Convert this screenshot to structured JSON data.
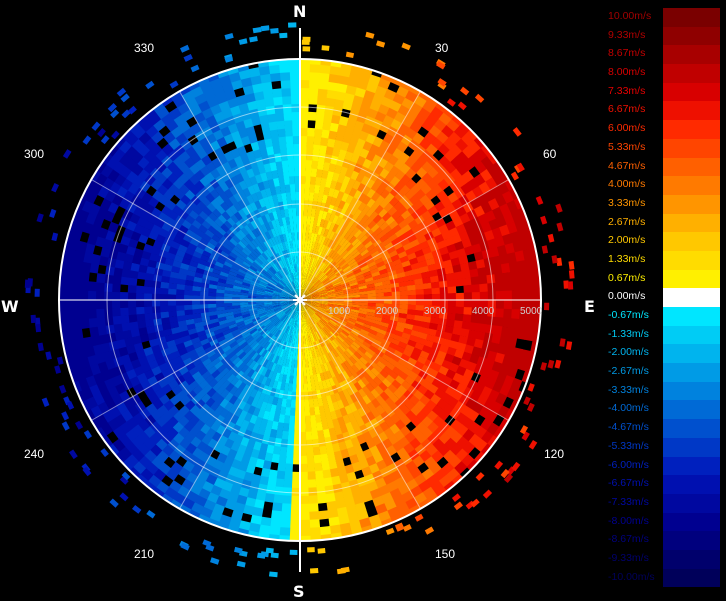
{
  "compass": {
    "n": "N",
    "e": "E",
    "s": "S",
    "w": "W"
  },
  "angles": [
    "30",
    "60",
    "120",
    "150",
    "210",
    "240",
    "300",
    "330"
  ],
  "range_labels": [
    "1000",
    "2000",
    "3000",
    "4000",
    "5000"
  ],
  "legend": [
    {
      "label": "10.00m/s",
      "color": "#7a0000",
      "text_color": "#a00000"
    },
    {
      "label": "9.33m/s",
      "color": "#8f0000",
      "text_color": "#b00000"
    },
    {
      "label": "8.67m/s",
      "color": "#a80000",
      "text_color": "#c40000"
    },
    {
      "label": "8.00m/s",
      "color": "#c00000",
      "text_color": "#d80000"
    },
    {
      "label": "7.33m/s",
      "color": "#d80000",
      "text_color": "#e80000"
    },
    {
      "label": "6.67m/s",
      "color": "#ee1000",
      "text_color": "#f01000"
    },
    {
      "label": "6.00m/s",
      "color": "#ff2a00",
      "text_color": "#ff2a00"
    },
    {
      "label": "5.33m/s",
      "color": "#ff4500",
      "text_color": "#ff4500"
    },
    {
      "label": "4.67m/s",
      "color": "#ff6000",
      "text_color": "#ff6000"
    },
    {
      "label": "4.00m/s",
      "color": "#ff7a00",
      "text_color": "#ff7a00"
    },
    {
      "label": "3.33m/s",
      "color": "#ff9500",
      "text_color": "#ff9500"
    },
    {
      "label": "2.67m/s",
      "color": "#ffb000",
      "text_color": "#ffb000"
    },
    {
      "label": "2.00m/s",
      "color": "#ffc800",
      "text_color": "#ffc800"
    },
    {
      "label": "1.33m/s",
      "color": "#ffdc00",
      "text_color": "#ffdc00"
    },
    {
      "label": "0.67m/s",
      "color": "#fff000",
      "text_color": "#fff000"
    },
    {
      "label": "0.00m/s",
      "color": "#ffffff",
      "text_color": "#ffffff"
    },
    {
      "label": "-0.67m/s",
      "color": "#00e6ff",
      "text_color": "#00e6ff"
    },
    {
      "label": "-1.33m/s",
      "color": "#00ccf5",
      "text_color": "#00ccf5"
    },
    {
      "label": "-2.00m/s",
      "color": "#00b4ee",
      "text_color": "#00b4ee"
    },
    {
      "label": "-2.67m/s",
      "color": "#009be6",
      "text_color": "#009be6"
    },
    {
      "label": "-3.33m/s",
      "color": "#0082de",
      "text_color": "#0082de"
    },
    {
      "label": "-4.00m/s",
      "color": "#006ad6",
      "text_color": "#006ad6"
    },
    {
      "label": "-4.67m/s",
      "color": "#0050ce",
      "text_color": "#0050ce"
    },
    {
      "label": "-5.33m/s",
      "color": "#0038c6",
      "text_color": "#0038c6"
    },
    {
      "label": "-6.00m/s",
      "color": "#0020be",
      "text_color": "#0020be"
    },
    {
      "label": "-6.67m/s",
      "color": "#0010b0",
      "text_color": "#0010b0"
    },
    {
      "label": "-7.33m/s",
      "color": "#0008a0",
      "text_color": "#0008a0"
    },
    {
      "label": "-8.00m/s",
      "color": "#000090",
      "text_color": "#000090"
    },
    {
      "label": "-8.67m/s",
      "color": "#00007e",
      "text_color": "#00007e"
    },
    {
      "label": "-9.33m/s",
      "color": "#00006c",
      "text_color": "#00006c"
    },
    {
      "label": "-10.00m/s",
      "color": "#00005a",
      "text_color": "#00005a"
    }
  ]
}
